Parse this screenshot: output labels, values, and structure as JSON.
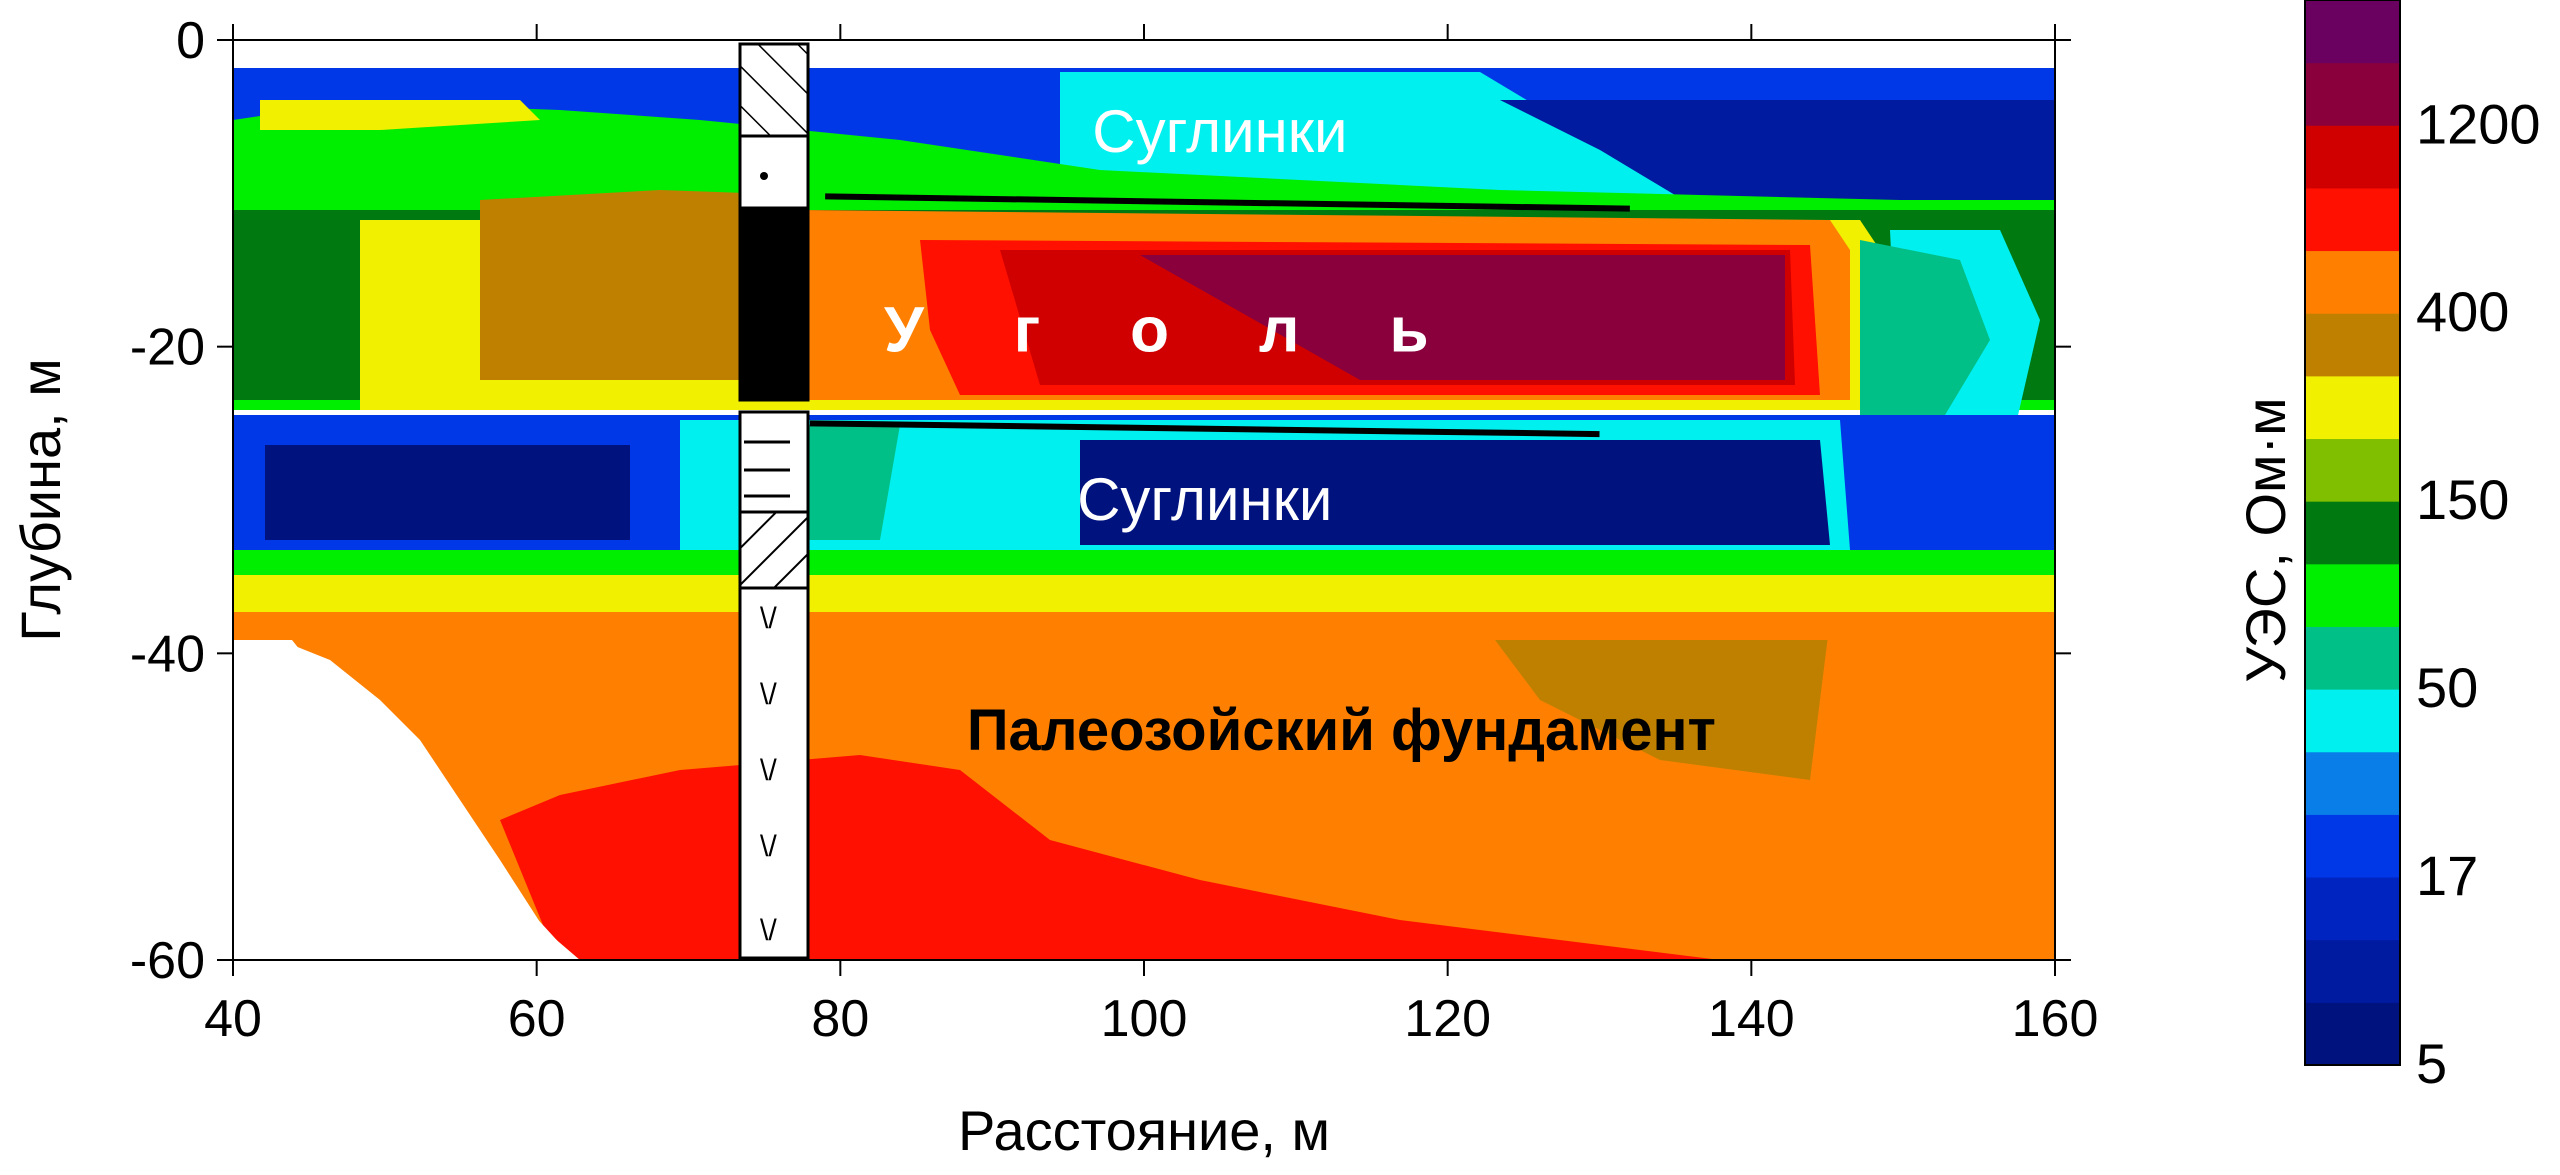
{
  "chart_data": {
    "type": "heatmap",
    "title": "",
    "xlabel": "Расстояние, м",
    "ylabel": "Глубина, м",
    "xlim": [
      40,
      160
    ],
    "ylim": [
      -60,
      0
    ],
    "x_ticks": [
      "40",
      "60",
      "80",
      "100",
      "120",
      "140",
      "160"
    ],
    "y_ticks": [
      "0",
      "-20",
      "-40",
      "-60"
    ],
    "colorbar": {
      "label": "УЭС, Ом·м",
      "tick_labels": [
        "5",
        "17",
        "50",
        "150",
        "400",
        "1200"
      ],
      "colors": [
        "#00127e",
        "#001aa0",
        "#0024c0",
        "#0038e8",
        "#0a7ee8",
        "#00f0f0",
        "#00c087",
        "#00ee00",
        "#007a10",
        "#80bf00",
        "#f0f000",
        "#bf8000",
        "#ff8000",
        "#ff1000",
        "#d00000",
        "#8a003c",
        "#6a0060"
      ]
    },
    "layers": [
      {
        "name": "Суглинки",
        "depth_top": 1.5,
        "depth_bottom": 11,
        "resistivity_range": [
          5,
          50
        ]
      },
      {
        "name": "Уголь",
        "depth_top": 11,
        "depth_bottom": 25,
        "resistivity_range": [
          400,
          1200
        ]
      },
      {
        "name": "Суглинки",
        "depth_top": 25,
        "depth_bottom": 36,
        "resistivity_range": [
          5,
          50
        ]
      },
      {
        "name": "Палеозойский фундамент",
        "depth_top": 36,
        "depth_bottom": 60,
        "resistivity_range": [
          400,
          1000
        ]
      }
    ],
    "annotations": [
      {
        "text": "Суглинки",
        "x": 105,
        "y": -6
      },
      {
        "text": "У г о л ь",
        "x": 102,
        "y": -19
      },
      {
        "text": "Суглинки",
        "x": 104,
        "y": -30
      },
      {
        "text": "Палеозойский фундамент",
        "x": 113,
        "y": -45
      }
    ],
    "borehole": {
      "x_from": 73.5,
      "x_to": 77.5,
      "depth": 60
    },
    "boundary_lines": [
      {
        "x1": 79,
        "y1": -10.2,
        "x2": 132,
        "y2": -11
      },
      {
        "x1": 78,
        "y1": -25,
        "x2": 130,
        "y2": -25.7
      }
    ]
  }
}
